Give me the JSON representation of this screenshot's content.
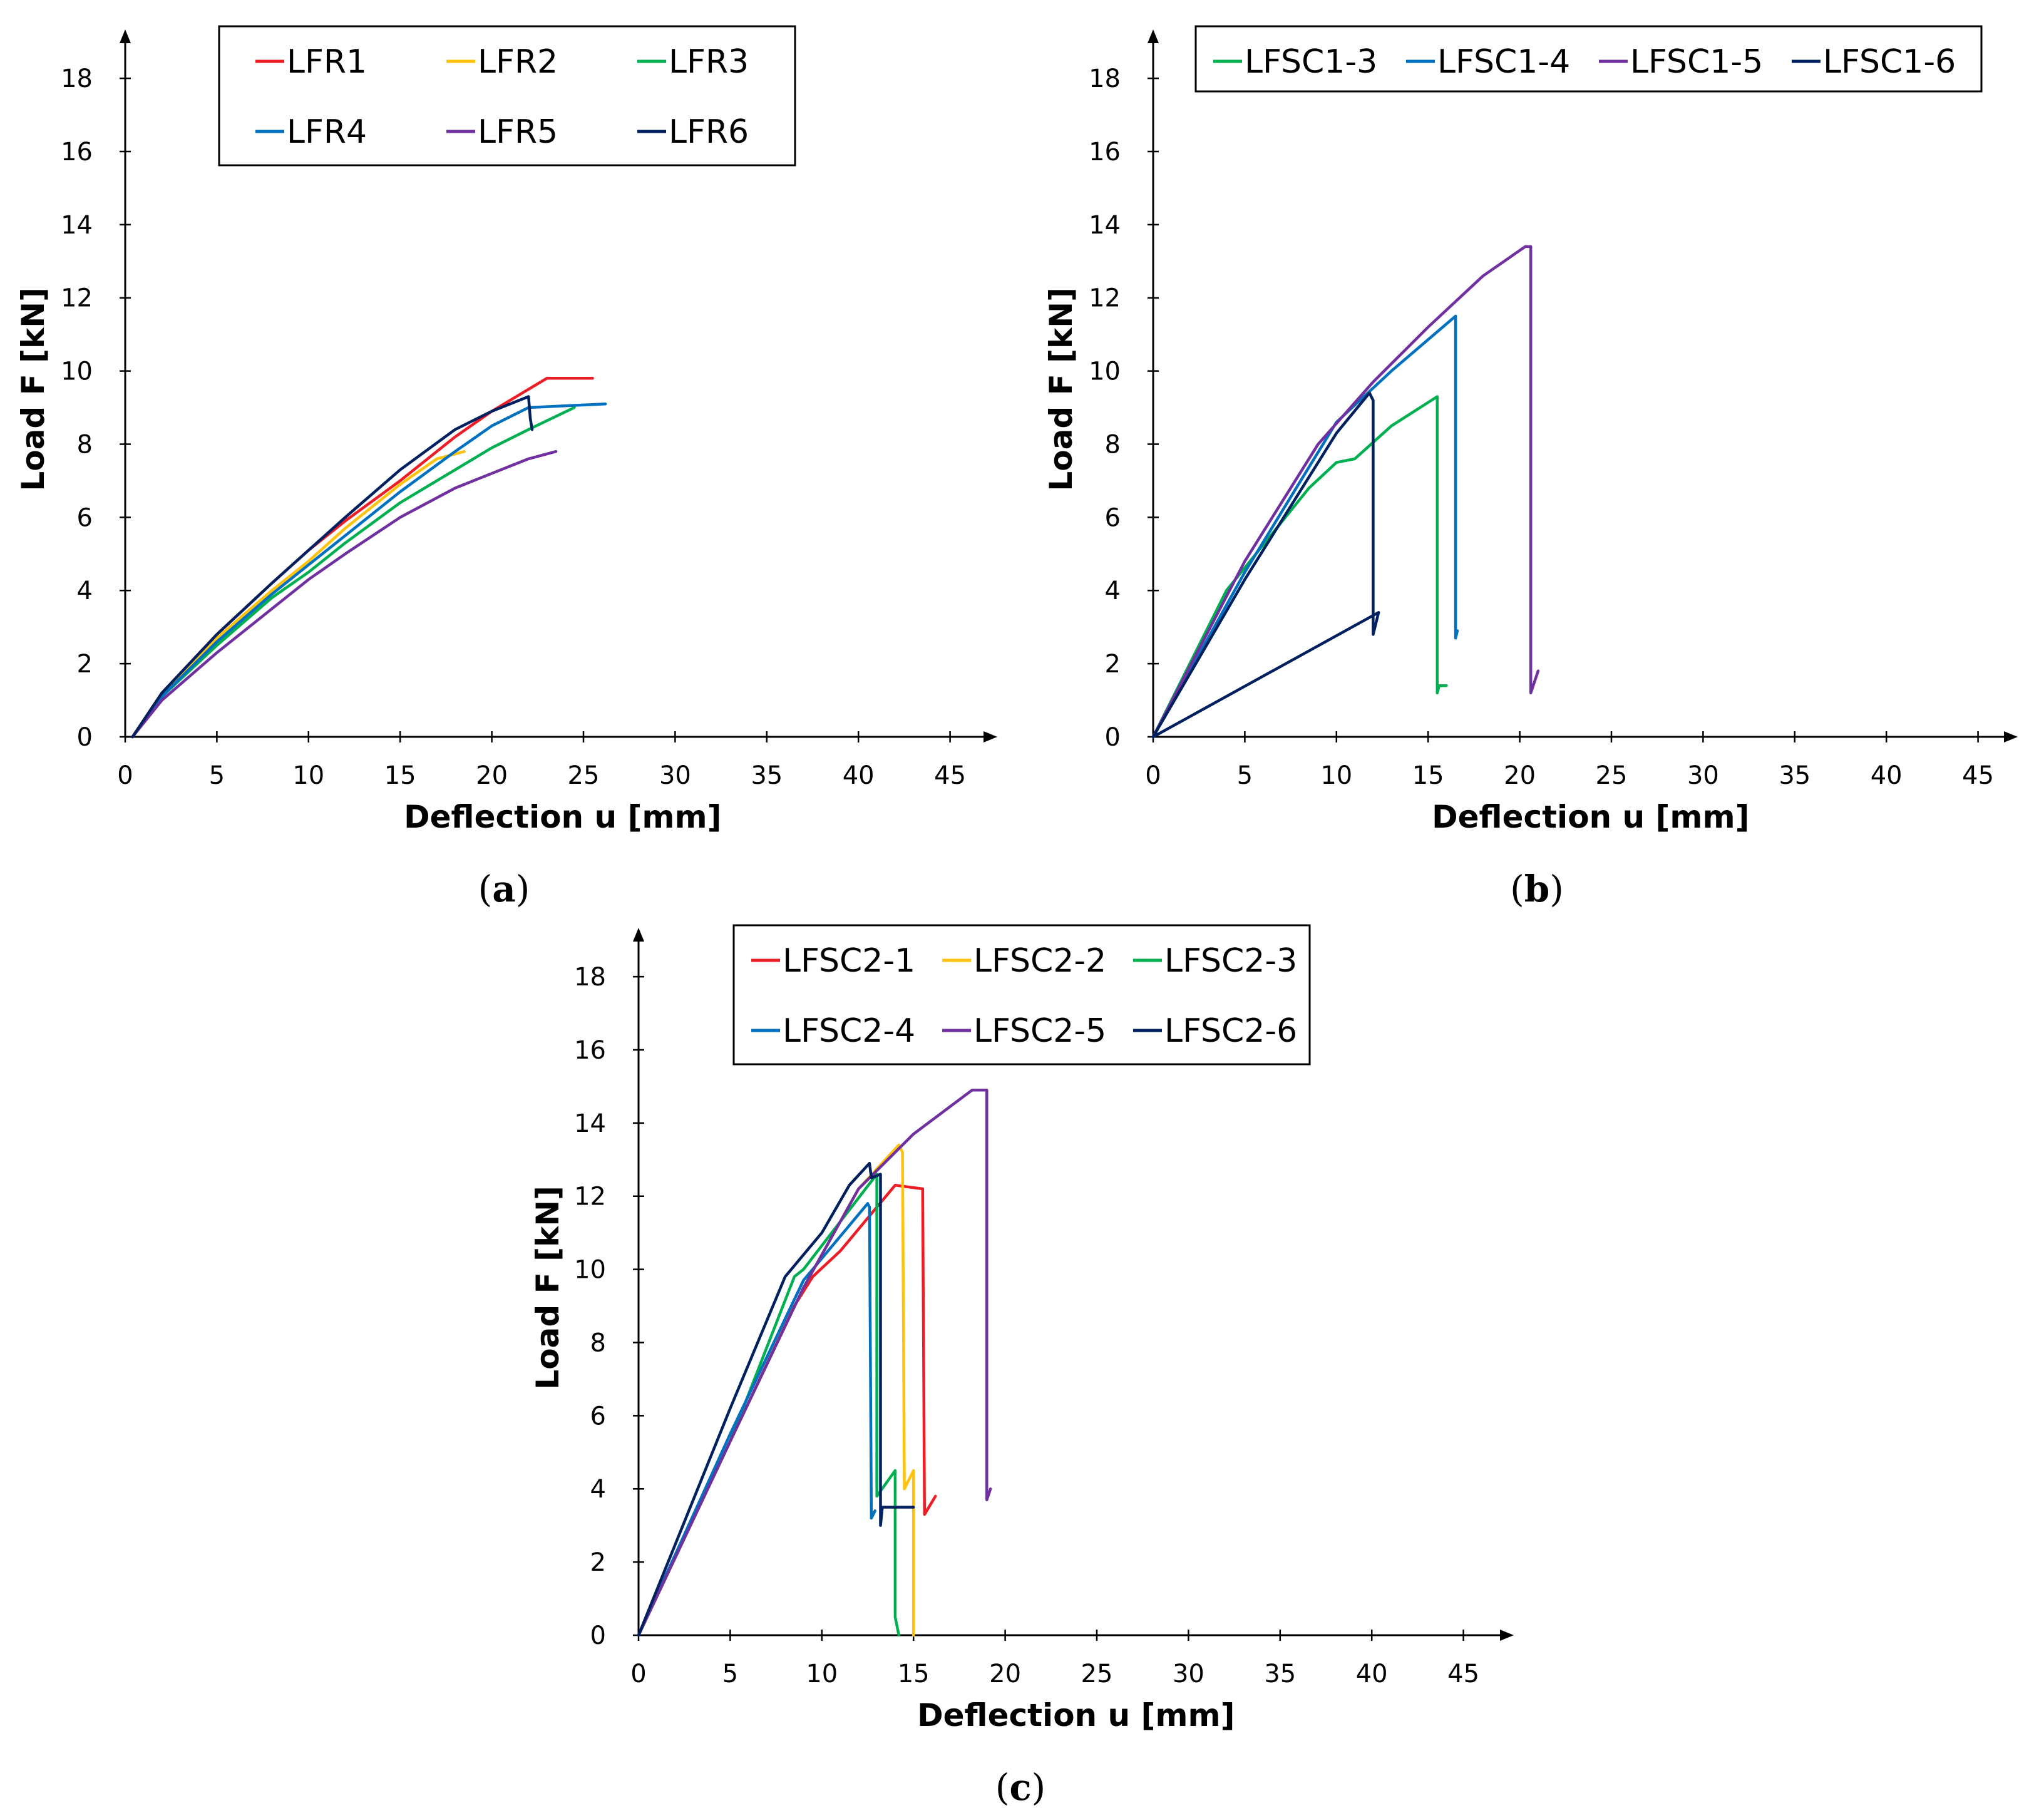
{
  "chart_data": [
    {
      "type": "line",
      "panel_label": "a",
      "xlabel": "Deflection u [mm]",
      "ylabel": "Load F [kN]",
      "xlim": [
        0,
        47
      ],
      "ylim": [
        0,
        19
      ],
      "xticks": [
        0,
        5,
        10,
        15,
        20,
        25,
        30,
        35,
        40,
        45
      ],
      "yticks": [
        0,
        2,
        4,
        6,
        8,
        10,
        12,
        14,
        16,
        18
      ],
      "legend": "top-left",
      "series": [
        {
          "name": "LFR1",
          "color": "#ee1c25",
          "x": [
            0.4,
            2,
            5,
            8,
            10,
            12,
            15,
            18,
            20,
            22,
            23,
            25.5
          ],
          "y": [
            0,
            1.2,
            2.8,
            4.2,
            5.1,
            5.9,
            7.0,
            8.2,
            8.9,
            9.5,
            9.8,
            9.8
          ]
        },
        {
          "name": "LFR2",
          "color": "#ffc20e",
          "x": [
            0.4,
            2,
            5,
            8,
            10,
            12,
            15,
            17,
            18.5
          ],
          "y": [
            0,
            1.2,
            2.7,
            4.0,
            4.8,
            5.7,
            6.9,
            7.6,
            7.8
          ]
        },
        {
          "name": "LFR3",
          "color": "#00b050",
          "x": [
            0.4,
            2,
            5,
            8,
            10,
            12,
            15,
            18,
            20,
            22,
            24.5
          ],
          "y": [
            0,
            1.1,
            2.5,
            3.8,
            4.5,
            5.3,
            6.4,
            7.3,
            7.9,
            8.4,
            9.0
          ]
        },
        {
          "name": "LFR4",
          "color": "#0070c0",
          "x": [
            0.4,
            2,
            5,
            8,
            10,
            12,
            15,
            18,
            20,
            22,
            26.2
          ],
          "y": [
            0,
            1.1,
            2.6,
            3.9,
            4.7,
            5.5,
            6.7,
            7.8,
            8.5,
            9.0,
            9.1
          ]
        },
        {
          "name": "LFR5",
          "color": "#7030a0",
          "x": [
            0.4,
            2,
            5,
            8,
            10,
            12,
            15,
            18,
            20,
            22,
            23.5
          ],
          "y": [
            0,
            1.0,
            2.3,
            3.5,
            4.3,
            5.0,
            6.0,
            6.8,
            7.2,
            7.6,
            7.8
          ]
        },
        {
          "name": "LFR6",
          "color": "#002060",
          "x": [
            0.4,
            2,
            5,
            8,
            10,
            12,
            15,
            18,
            20,
            22,
            22.1,
            22.2
          ],
          "y": [
            0,
            1.2,
            2.8,
            4.2,
            5.1,
            6.0,
            7.3,
            8.4,
            8.9,
            9.3,
            8.7,
            8.4
          ]
        }
      ]
    },
    {
      "type": "line",
      "panel_label": "b",
      "xlabel": "Deflection u [mm]",
      "ylabel": "Load F [kN]",
      "xlim": [
        0,
        47
      ],
      "ylim": [
        0,
        19
      ],
      "xticks": [
        0,
        5,
        10,
        15,
        20,
        25,
        30,
        35,
        40,
        45
      ],
      "yticks": [
        0,
        2,
        4,
        6,
        8,
        10,
        12,
        14,
        16,
        18
      ],
      "legend": "top",
      "series": [
        {
          "name": "LFSC1-3",
          "color": "#00b050",
          "x": [
            0,
            4,
            8.5,
            10,
            11,
            13,
            15.5,
            15.5,
            15.6,
            16
          ],
          "y": [
            0,
            4,
            6.8,
            7.5,
            7.6,
            8.5,
            9.3,
            1.2,
            1.4,
            1.4
          ]
        },
        {
          "name": "LFSC1-4",
          "color": "#0070c0",
          "x": [
            0,
            5,
            10,
            13,
            16.5,
            16.5,
            16.6
          ],
          "y": [
            0,
            4.5,
            8.6,
            10.0,
            11.5,
            2.7,
            2.9
          ]
        },
        {
          "name": "LFSC1-5",
          "color": "#7030a0",
          "x": [
            0,
            5,
            9,
            12,
            15,
            18,
            20.3,
            20.6,
            20.6,
            21
          ],
          "y": [
            0,
            4.8,
            8.0,
            9.7,
            11.2,
            12.6,
            13.4,
            13.4,
            1.2,
            1.8
          ]
        },
        {
          "name": "LFSC1-6",
          "color": "#002060",
          "x": [
            0,
            5,
            10,
            11.8,
            12.0,
            12.0,
            12.3,
            0
          ],
          "y": [
            0,
            4.3,
            8.3,
            9.4,
            9.2,
            2.8,
            3.4,
            0
          ]
        }
      ]
    },
    {
      "type": "line",
      "panel_label": "c",
      "xlabel": "Deflection u [mm]",
      "ylabel": "Load F [kN]",
      "xlim": [
        0,
        47
      ],
      "ylim": [
        0,
        19
      ],
      "xticks": [
        0,
        5,
        10,
        15,
        20,
        25,
        30,
        35,
        40,
        45
      ],
      "yticks": [
        0,
        2,
        4,
        6,
        8,
        10,
        12,
        14,
        16,
        18
      ],
      "legend": "top",
      "series": [
        {
          "name": "LFSC2-1",
          "color": "#ee1c25",
          "x": [
            0,
            5,
            8.5,
            9.5,
            11,
            14,
            15.5,
            15.6,
            16.2
          ],
          "y": [
            0,
            5.3,
            9.0,
            9.8,
            10.5,
            12.3,
            12.2,
            3.3,
            3.8
          ]
        },
        {
          "name": "LFSC2-2",
          "color": "#ffc20e",
          "x": [
            0,
            5,
            9,
            12,
            14.2,
            14.4,
            14.5,
            15.0,
            15.0
          ],
          "y": [
            0,
            5.3,
            9.5,
            12.2,
            13.4,
            13.2,
            4.0,
            4.5,
            0
          ]
        },
        {
          "name": "LFSC2-3",
          "color": "#00b050",
          "x": [
            0,
            5,
            8.5,
            9,
            13.0,
            13.0,
            14.0,
            14.0,
            14.2
          ],
          "y": [
            0,
            5.3,
            9.8,
            10.0,
            12.6,
            3.8,
            4.5,
            0.5,
            0
          ]
        },
        {
          "name": "LFSC2-4",
          "color": "#0070c0",
          "x": [
            0,
            5,
            9,
            12.5,
            12.6,
            12.7,
            12.9
          ],
          "y": [
            0,
            5.5,
            9.7,
            11.8,
            11.7,
            3.2,
            3.4
          ]
        },
        {
          "name": "LFSC2-5",
          "color": "#7030a0",
          "x": [
            0,
            5,
            9,
            12,
            15,
            18.2,
            19,
            19,
            19.2
          ],
          "y": [
            0,
            5.3,
            9.5,
            12.2,
            13.7,
            14.9,
            14.9,
            3.7,
            4.0
          ]
        },
        {
          "name": "LFSC2-6",
          "color": "#002060",
          "x": [
            0,
            5,
            8,
            10,
            11.5,
            12.6,
            12.7,
            13.2,
            13.2,
            13.3,
            15
          ],
          "y": [
            0,
            6.2,
            9.8,
            11.0,
            12.3,
            12.9,
            12.5,
            12.6,
            3.0,
            3.5,
            3.5
          ]
        }
      ]
    }
  ]
}
